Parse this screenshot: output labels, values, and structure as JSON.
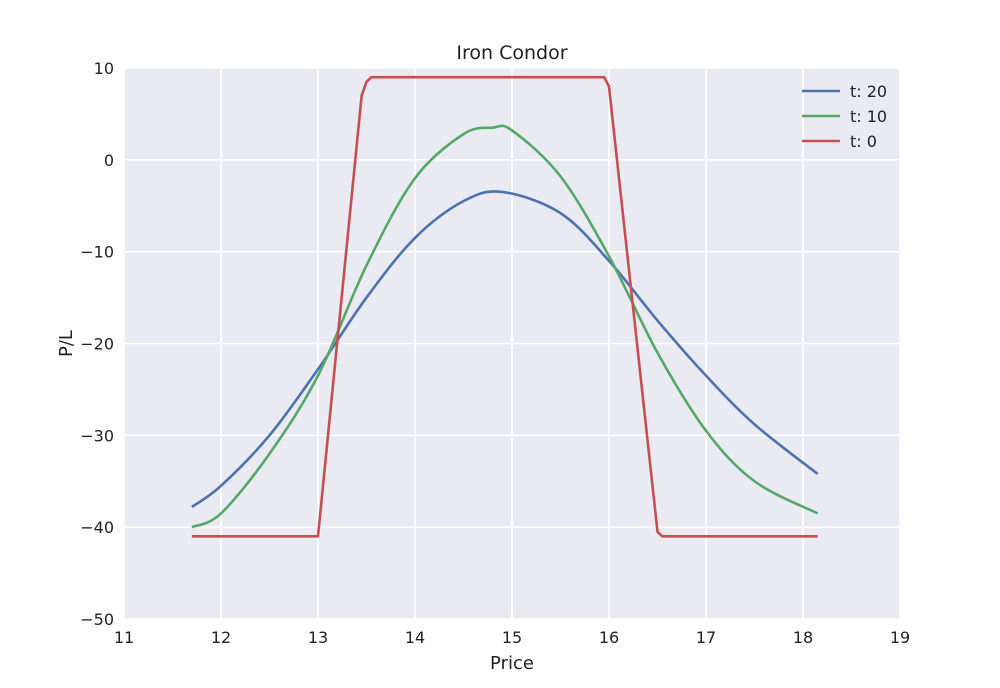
{
  "chart_data": {
    "type": "line",
    "title": "Iron Condor",
    "xlabel": "Price",
    "ylabel": "P/L",
    "xlim": [
      11,
      19
    ],
    "ylim": [
      -50,
      10
    ],
    "xticks": [
      11,
      12,
      13,
      14,
      15,
      16,
      17,
      18,
      19
    ],
    "yticks": [
      10,
      0,
      -10,
      -20,
      -30,
      -40,
      -50
    ],
    "xtick_labels": [
      "11",
      "12",
      "13",
      "14",
      "15",
      "16",
      "17",
      "18",
      "19"
    ],
    "ytick_labels": [
      "10",
      "0",
      "−10",
      "−20",
      "−30",
      "−40",
      "−50"
    ],
    "grid": true,
    "legend_position": "top-right",
    "colors": {
      "background": "#eaeaf2",
      "grid": "#ffffff"
    },
    "series": [
      {
        "name": "t: 20",
        "color": "#4c72b0",
        "x": [
          11.7,
          12.0,
          12.5,
          13.0,
          13.5,
          14.0,
          14.5,
          14.9,
          15.5,
          16.0,
          16.5,
          17.0,
          17.5,
          18.15
        ],
        "y": [
          -37.8,
          -35.5,
          -30.0,
          -22.8,
          -15.0,
          -8.5,
          -4.5,
          -3.5,
          -5.8,
          -11.0,
          -17.5,
          -23.5,
          -28.8,
          -34.2
        ]
      },
      {
        "name": "t: 10",
        "color": "#55a868",
        "x": [
          11.7,
          12.0,
          12.5,
          13.0,
          13.5,
          14.0,
          14.5,
          14.8,
          15.0,
          15.5,
          16.0,
          16.5,
          17.0,
          17.5,
          18.15
        ],
        "y": [
          -40.0,
          -38.5,
          -32.0,
          -23.5,
          -11.5,
          -2.0,
          2.8,
          3.5,
          3.2,
          -1.8,
          -10.5,
          -21.0,
          -29.5,
          -35.0,
          -38.5
        ]
      },
      {
        "name": "t: 0",
        "color": "#c44e52",
        "x": [
          11.7,
          13.0,
          13.45,
          13.5,
          13.55,
          15.95,
          16.0,
          16.5,
          16.55,
          18.15
        ],
        "y": [
          -41.0,
          -41.0,
          7.0,
          8.5,
          9.0,
          9.0,
          8.0,
          -40.5,
          -41.0,
          -41.0
        ]
      }
    ]
  }
}
